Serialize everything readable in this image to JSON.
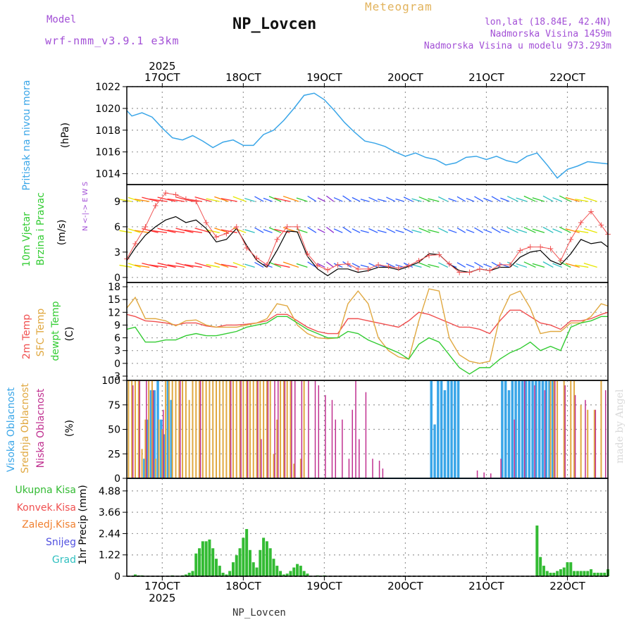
{
  "header": {
    "model_label": "Model",
    "model_name": "wrf-nmm_v3.9.1 e3km",
    "station_title": "NP_Lovcen",
    "meteogram_label": "Meteogram",
    "lonlat": "lon,lat (18.84E, 42.4N)",
    "altitude": "Nadmorska Visina 1459m",
    "model_altitude": "Nadmorska Visina u modelu 973.293m"
  },
  "footer": {
    "station": "NP_Lovcen",
    "made_by": "made by Angel"
  },
  "time_axis": {
    "year_top": "2025",
    "year_bottom": "2025",
    "day_labels": [
      "17OCT",
      "18OCT",
      "19OCT",
      "20OCT",
      "21OCT",
      "22OCT"
    ],
    "start_hour_offset": 13.5,
    "end_hour_offset": 156
  },
  "colors": {
    "pressure": "#3aa6e8",
    "windspeed": "#000000",
    "gust": "#f05050",
    "temp2m": "#f05050",
    "sfc": "#e0a840",
    "dewpt": "#33cc33",
    "cloud_high": "#3aa6e8",
    "cloud_mid": "#e0a840",
    "cloud_low": "#c03090",
    "precip_total": "#33bb33",
    "axis_label_purple": "#a24fd6",
    "grid": "#999999"
  },
  "chart_data": [
    {
      "type": "line",
      "id": "pressure",
      "ylabel_left": "Pritisak na nivou mora",
      "unit": "(hPa)",
      "yticks": [
        "1014",
        "1016",
        "1018",
        "1020",
        "1022"
      ],
      "ylim": [
        1013,
        1022
      ],
      "x_hours": [
        13.5,
        15,
        18,
        21,
        24,
        27,
        30,
        33,
        36,
        39,
        42,
        45,
        48,
        51,
        54,
        57,
        60,
        63,
        66,
        69,
        72,
        75,
        78,
        81,
        84,
        87,
        90,
        93,
        96,
        99,
        102,
        105,
        108,
        111,
        114,
        117,
        120,
        123,
        126,
        129,
        132,
        135,
        138,
        141,
        144,
        147,
        150,
        153,
        156
      ],
      "values": [
        1019.8,
        1019.3,
        1019.6,
        1019.2,
        1018.2,
        1017.3,
        1017.1,
        1017.5,
        1017.0,
        1016.4,
        1016.9,
        1017.1,
        1016.6,
        1016.6,
        1017.6,
        1018.0,
        1018.9,
        1020.0,
        1021.2,
        1021.4,
        1020.8,
        1019.8,
        1018.7,
        1017.8,
        1017.0,
        1016.8,
        1016.5,
        1016.0,
        1015.6,
        1015.9,
        1015.5,
        1015.3,
        1014.8,
        1015.0,
        1015.5,
        1015.6,
        1015.3,
        1015.6,
        1015.2,
        1015.0,
        1015.6,
        1015.9,
        1014.8,
        1013.6,
        1014.4,
        1014.7,
        1015.1,
        1015.0,
        1014.9
      ],
      "series_name": "Pritisak"
    },
    {
      "type": "line",
      "id": "wind",
      "ylabel_left": "10m Vjetar",
      "ylabel_left2": "Brzina i Pravac",
      "unit": "(m/s)",
      "compass": "N <-|-> E W S",
      "yticks": [
        "0",
        "3",
        "6",
        "9"
      ],
      "ylim": [
        -0.6,
        11
      ],
      "x_hours": [
        13.5,
        16,
        19,
        22,
        25,
        28,
        31,
        34,
        37,
        40,
        43,
        46,
        49,
        52,
        55,
        58,
        61,
        64,
        67,
        70,
        73,
        76,
        79,
        82,
        85,
        88,
        91,
        94,
        97,
        100,
        103,
        106,
        109,
        112,
        115,
        118,
        121,
        124,
        127,
        130,
        133,
        136,
        139,
        142,
        145,
        148,
        151,
        154,
        156
      ],
      "series": [
        {
          "name": "Brzina",
          "values": [
            2.0,
            3.5,
            5.0,
            6.0,
            6.8,
            7.2,
            6.5,
            6.8,
            5.8,
            4.2,
            4.5,
            5.8,
            3.8,
            2.0,
            1.2,
            3.2,
            5.5,
            5.4,
            2.5,
            1.0,
            0.2,
            1.0,
            1.0,
            0.6,
            0.8,
            1.2,
            1.2,
            0.9,
            1.3,
            1.8,
            2.8,
            2.7,
            1.6,
            0.8,
            0.6,
            1.0,
            0.8,
            1.2,
            1.2,
            2.4,
            3.0,
            3.2,
            2.0,
            1.5,
            2.8,
            4.5,
            4.0,
            4.2,
            3.6
          ]
        },
        {
          "name": "Udar",
          "values": [
            2.2,
            4.0,
            6.0,
            8.5,
            10.0,
            9.8,
            9.3,
            9.0,
            6.5,
            4.8,
            5.2,
            6.0,
            3.5,
            2.3,
            1.5,
            4.5,
            6.0,
            6.0,
            2.8,
            1.4,
            0.9,
            1.5,
            1.6,
            1.0,
            1.0,
            1.5,
            1.3,
            1.1,
            1.4,
            2.0,
            2.6,
            2.7,
            1.6,
            0.6,
            0.6,
            1.0,
            0.8,
            1.5,
            1.5,
            3.2,
            3.6,
            3.6,
            3.4,
            2.0,
            4.5,
            6.5,
            7.8,
            6.2,
            5.1
          ]
        }
      ]
    },
    {
      "type": "line",
      "id": "temperature",
      "ylabel_left": [
        "2m Temp",
        "SFC Temp",
        "dewpt Temp"
      ],
      "unit": "(C)",
      "yticks": [
        "-3",
        "0",
        "3",
        "6",
        "9",
        "12",
        "15",
        "18"
      ],
      "ylim": [
        -4,
        19
      ],
      "x_hours": [
        13.5,
        16,
        19,
        22,
        25,
        28,
        31,
        34,
        37,
        40,
        43,
        46,
        49,
        52,
        55,
        58,
        61,
        64,
        67,
        70,
        73,
        76,
        79,
        82,
        85,
        88,
        91,
        94,
        97,
        100,
        103,
        106,
        109,
        112,
        115,
        118,
        121,
        124,
        127,
        130,
        133,
        136,
        139,
        142,
        145,
        148,
        151,
        154,
        156
      ],
      "series": [
        {
          "name": "2m Temp",
          "values": [
            11.5,
            11.0,
            10.0,
            9.8,
            9.5,
            9.0,
            9.5,
            9.5,
            8.8,
            8.5,
            9.0,
            9.0,
            9.2,
            9.5,
            10.0,
            11.5,
            11.5,
            10.0,
            8.5,
            7.5,
            7.0,
            7.0,
            10.5,
            10.5,
            10.0,
            9.5,
            9.0,
            8.5,
            10.0,
            12.0,
            11.5,
            10.5,
            9.5,
            8.5,
            8.5,
            8.0,
            7.0,
            10.0,
            12.5,
            12.5,
            11.0,
            9.5,
            9.0,
            8.0,
            10.0,
            10.0,
            10.5,
            11.5,
            12.0
          ]
        },
        {
          "name": "SFC Temp",
          "values": [
            13.0,
            15.5,
            10.5,
            10.5,
            10.0,
            8.8,
            10.0,
            10.2,
            9.0,
            8.5,
            8.5,
            8.5,
            9.0,
            9.5,
            10.5,
            14.0,
            13.5,
            9.0,
            7.0,
            6.0,
            5.8,
            6.0,
            14.0,
            17.0,
            14.0,
            6.0,
            3.0,
            1.5,
            1.0,
            10.0,
            17.5,
            17.0,
            6.0,
            2.0,
            0.5,
            0.0,
            0.5,
            11.0,
            16.0,
            17.0,
            13.0,
            7.0,
            7.5,
            7.5,
            9.5,
            9.5,
            11.0,
            14.0,
            13.5
          ]
        },
        {
          "name": "dewpt Temp",
          "values": [
            8.0,
            8.5,
            5.0,
            5.0,
            5.5,
            5.5,
            6.5,
            7.0,
            6.5,
            6.5,
            7.0,
            7.5,
            8.5,
            9.0,
            9.5,
            11.0,
            11.0,
            9.5,
            8.0,
            7.0,
            6.0,
            6.0,
            7.5,
            7.0,
            5.5,
            4.5,
            3.5,
            2.5,
            1.0,
            4.5,
            6.0,
            5.0,
            2.0,
            -1.0,
            -2.5,
            -1.0,
            -1.0,
            1.0,
            2.5,
            3.5,
            5.0,
            3.0,
            4.0,
            3.0,
            8.5,
            9.5,
            10.0,
            11.0,
            11.0
          ]
        }
      ]
    },
    {
      "type": "bar",
      "id": "clouds",
      "ylabel_left": [
        "Visoka Oblacnost",
        "Srednja Oblacnost",
        "Niska Oblacnost"
      ],
      "unit": "(%)",
      "yticks": [
        "0",
        "25",
        "50",
        "75",
        "100"
      ],
      "ylim": [
        0,
        100
      ],
      "series": [
        {
          "name": "Visoka",
          "x_hours": [
            19,
            20,
            21,
            22,
            23,
            24,
            25,
            26,
            27,
            104,
            105,
            106,
            107,
            108,
            109,
            110,
            111,
            112,
            125,
            126,
            127,
            128,
            129,
            130,
            131,
            132,
            133,
            134,
            135,
            136,
            137,
            138,
            139,
            140
          ],
          "values": [
            20,
            60,
            90,
            90,
            100,
            60,
            45,
            100,
            80,
            100,
            55,
            100,
            100,
            90,
            100,
            100,
            100,
            100,
            100,
            100,
            90,
            100,
            100,
            100,
            100,
            100,
            100,
            100,
            100,
            100,
            100,
            100,
            100,
            100
          ]
        },
        {
          "name": "Srednja",
          "x_hours": [
            14,
            15,
            16,
            17,
            18,
            19,
            20,
            21,
            22,
            23,
            24,
            25,
            26,
            27,
            28,
            29,
            30,
            31,
            32,
            33,
            34,
            35,
            36,
            37,
            38,
            39,
            40,
            41,
            42,
            43,
            44,
            45,
            46,
            47,
            48,
            49,
            50,
            51,
            52,
            53,
            54,
            55,
            56,
            57,
            58,
            59,
            60,
            61,
            62,
            63,
            65,
            66,
            139,
            140,
            141,
            143,
            145,
            146,
            148,
            150,
            152,
            154
          ],
          "values": [
            100,
            100,
            100,
            100,
            30,
            60,
            100,
            100,
            20,
            60,
            50,
            100,
            100,
            100,
            100,
            100,
            100,
            100,
            80,
            100,
            100,
            100,
            100,
            100,
            100,
            100,
            100,
            100,
            100,
            100,
            100,
            100,
            100,
            100,
            100,
            100,
            100,
            100,
            100,
            100,
            100,
            100,
            100,
            25,
            60,
            100,
            100,
            100,
            100,
            15,
            20,
            100,
            100,
            100,
            100,
            100,
            100,
            100,
            75,
            70,
            70,
            100
          ]
        },
        {
          "name": "Niska",
          "x_hours": [
            15,
            17,
            19,
            21,
            24,
            29,
            35,
            44,
            47,
            49,
            52,
            53,
            55,
            57,
            58,
            60,
            62,
            63,
            65,
            67,
            69,
            70,
            72,
            74,
            75,
            77,
            79,
            80,
            81,
            82,
            84,
            86,
            88,
            89,
            117,
            119,
            121,
            124,
            128,
            131,
            134,
            137,
            140,
            143,
            146,
            149,
            152,
            155
          ],
          "values": [
            95,
            100,
            100,
            90,
            70,
            100,
            100,
            100,
            100,
            100,
            100,
            40,
            100,
            100,
            100,
            100,
            100,
            100,
            100,
            100,
            100,
            95,
            85,
            80,
            60,
            60,
            20,
            70,
            100,
            40,
            88,
            20,
            18,
            10,
            8,
            6,
            5,
            20,
            60,
            100,
            95,
            90,
            100,
            95,
            85,
            80,
            70,
            90
          ]
        }
      ]
    },
    {
      "type": "bar",
      "id": "precip",
      "ylabel_left": "1hr Precip (mm)",
      "legend": [
        "Ukupna Kisa",
        "Konvek.Kisa",
        "Zaledj.Kisa",
        "Snijeg",
        "Grad"
      ],
      "yticks": [
        "0",
        "1.22",
        "2.44",
        "3.66",
        "4.88"
      ],
      "ylim": [
        0,
        5.6
      ],
      "x_hours": [
        16,
        17,
        18,
        19,
        20,
        21,
        22,
        23,
        24,
        25,
        26,
        27,
        28,
        29,
        30,
        31,
        32,
        33,
        34,
        35,
        36,
        37,
        38,
        39,
        40,
        41,
        42,
        43,
        44,
        45,
        46,
        47,
        48,
        49,
        50,
        51,
        52,
        53,
        54,
        55,
        56,
        57,
        58,
        59,
        60,
        61,
        62,
        63,
        64,
        65,
        66,
        67,
        70,
        72,
        135,
        136,
        137,
        138,
        139,
        140,
        141,
        142,
        143,
        144,
        145,
        146,
        147,
        148,
        149,
        150,
        151,
        152,
        153,
        154,
        155,
        156
      ],
      "values": [
        0.1,
        0.05,
        0.05,
        0,
        0,
        0,
        0,
        0,
        0,
        0,
        0,
        0.05,
        0,
        0,
        0.05,
        0.1,
        0.2,
        0.3,
        1.3,
        1.6,
        2.0,
        2.0,
        2.1,
        1.6,
        1.0,
        0.6,
        0.2,
        0.1,
        0.3,
        0.8,
        1.2,
        1.6,
        2.2,
        2.7,
        1.5,
        0.8,
        0.5,
        1.5,
        2.2,
        2.0,
        1.6,
        1.0,
        0.6,
        0.3,
        0.1,
        0.15,
        0.3,
        0.5,
        0.7,
        0.6,
        0.3,
        0.15,
        0.05,
        0.05,
        2.9,
        1.1,
        0.6,
        0.3,
        0.2,
        0.2,
        0.3,
        0.4,
        0.5,
        0.8,
        0.8,
        0.3,
        0.3,
        0.3,
        0.3,
        0.3,
        0.4,
        0.2,
        0.2,
        0.2,
        0.2,
        0.4
      ]
    }
  ]
}
